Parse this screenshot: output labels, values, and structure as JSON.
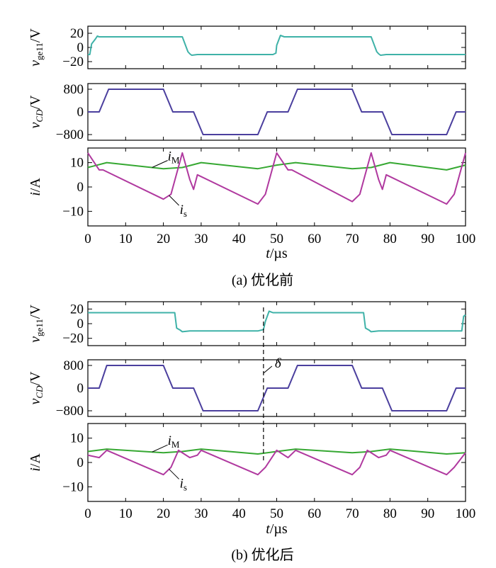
{
  "colors": {
    "vge": "#3fb2a8",
    "vcd": "#4b3f9e",
    "iM": "#36a832",
    "is": "#b0399f"
  },
  "xaxis": {
    "label": "t/µs",
    "ticks": [
      "0",
      "10",
      "20",
      "30",
      "40",
      "50",
      "60",
      "70",
      "80",
      "90",
      "100"
    ]
  },
  "chart_data": [
    {
      "type": "line",
      "caption": "(a)  优化前",
      "xlim": [
        0,
        100
      ],
      "panels": [
        {
          "ylabel": "v_ge11/V",
          "ylim": [
            -30,
            30
          ],
          "yticks": [
            "20",
            "0",
            "−20"
          ],
          "series": [
            {
              "x": [
                0,
                0.5,
                1,
                2,
                2.5,
                3,
                24,
                25,
                26.5,
                27,
                27.5,
                29,
                49,
                49.8,
                50,
                51,
                52,
                74,
                75,
                76.5,
                77,
                77.5,
                79,
                100
              ],
              "values": [
                -10,
                -10,
                5,
                12,
                16,
                15,
                15,
                15,
                -6,
                -9,
                -11,
                -10,
                -10,
                -8,
                3,
                17,
                15,
                15,
                15,
                -6,
                -9,
                -11,
                -10,
                -10
              ]
            }
          ]
        },
        {
          "ylabel": "v_CD/V",
          "ylim": [
            -1000,
            1000
          ],
          "yticks": [
            "800",
            "0",
            "−800"
          ],
          "series": [
            {
              "x": [
                0,
                3,
                5.5,
                20,
                22.5,
                28,
                30.5,
                45,
                47.5,
                53,
                55.5,
                70,
                72.5,
                78,
                80.5,
                95,
                97.5,
                100
              ],
              "values": [
                0,
                0,
                800,
                800,
                0,
                0,
                -800,
                -800,
                0,
                0,
                800,
                800,
                0,
                0,
                -800,
                -800,
                0,
                0
              ]
            }
          ]
        },
        {
          "ylabel": "i/A",
          "ylim": [
            -16,
            16
          ],
          "yticks": [
            "10",
            "0",
            "−10"
          ],
          "annotations": [
            "i_M",
            "i_s"
          ],
          "series": [
            {
              "name": "i_M",
              "x": [
                0,
                5,
                20,
                25,
                30,
                45,
                50,
                55,
                70,
                75,
                80,
                95,
                100
              ],
              "values": [
                8,
                10,
                7.5,
                8,
                10,
                7.5,
                9,
                10,
                7.5,
                8,
                10,
                7,
                9
              ]
            },
            {
              "name": "i_s",
              "x": [
                0,
                3,
                4,
                20,
                22,
                25,
                27,
                28,
                29,
                45,
                47,
                50,
                53,
                54,
                70,
                72,
                75,
                77,
                78,
                79,
                95,
                97,
                100
              ],
              "values": [
                14,
                7,
                7,
                -5,
                -3,
                14,
                3,
                -1,
                5,
                -7,
                -3,
                14,
                7,
                7,
                -6,
                -3,
                14,
                3,
                -1,
                5,
                -7,
                -3,
                14
              ]
            }
          ]
        }
      ]
    },
    {
      "type": "line",
      "caption": "(b)  优化后",
      "xlim": [
        0,
        100
      ],
      "annotation": "δ",
      "panels": [
        {
          "ylabel": "v_ge11/V",
          "ylim": [
            -30,
            30
          ],
          "yticks": [
            "20",
            "0",
            "−20"
          ],
          "series": [
            {
              "x": [
                0,
                1,
                22,
                23,
                23.5,
                24.5,
                25,
                27,
                45,
                46.5,
                47,
                48,
                49,
                72,
                73,
                73.5,
                74.5,
                75,
                77,
                99,
                99.5,
                100
              ],
              "values": [
                15,
                15,
                15,
                15,
                -6,
                -9,
                -11,
                -10,
                -10,
                -8,
                3,
                17,
                15,
                15,
                15,
                -6,
                -9,
                -11,
                -10,
                -10,
                10,
                12
              ]
            }
          ]
        },
        {
          "ylabel": "v_CD/V",
          "ylim": [
            -1000,
            1000
          ],
          "yticks": [
            "800",
            "0",
            "−800"
          ],
          "series": [
            {
              "x": [
                0,
                3,
                5,
                20,
                22.5,
                28,
                30.5,
                45,
                47.5,
                53,
                55.5,
                70,
                72.5,
                78,
                80.5,
                95,
                97.5,
                100
              ],
              "values": [
                0,
                0,
                800,
                800,
                0,
                0,
                -800,
                -800,
                0,
                0,
                800,
                800,
                0,
                0,
                -800,
                -800,
                0,
                0
              ]
            }
          ]
        },
        {
          "ylabel": "i/A",
          "ylim": [
            -16,
            16
          ],
          "yticks": [
            "10",
            "0",
            "−10"
          ],
          "annotations": [
            "i_M",
            "i_s"
          ],
          "series": [
            {
              "name": "i_M",
              "x": [
                0,
                5,
                20,
                25,
                30,
                45,
                50,
                55,
                70,
                75,
                80,
                95,
                100
              ],
              "values": [
                4.5,
                5.5,
                4,
                4.5,
                5.5,
                3.5,
                4.5,
                5.5,
                4,
                4.5,
                5.5,
                3.5,
                4
              ]
            },
            {
              "name": "i_s",
              "x": [
                0,
                3,
                5,
                20,
                22,
                24,
                27,
                29,
                30,
                45,
                47,
                50,
                53,
                55,
                70,
                72,
                74,
                77,
                79,
                80,
                95,
                97,
                100
              ],
              "values": [
                3,
                2,
                5,
                -5,
                -2,
                5,
                2,
                3,
                5,
                -5,
                -2,
                5,
                2,
                5,
                -5,
                -2,
                5,
                2,
                3,
                5,
                -5,
                -2,
                4
              ]
            }
          ]
        }
      ]
    }
  ]
}
